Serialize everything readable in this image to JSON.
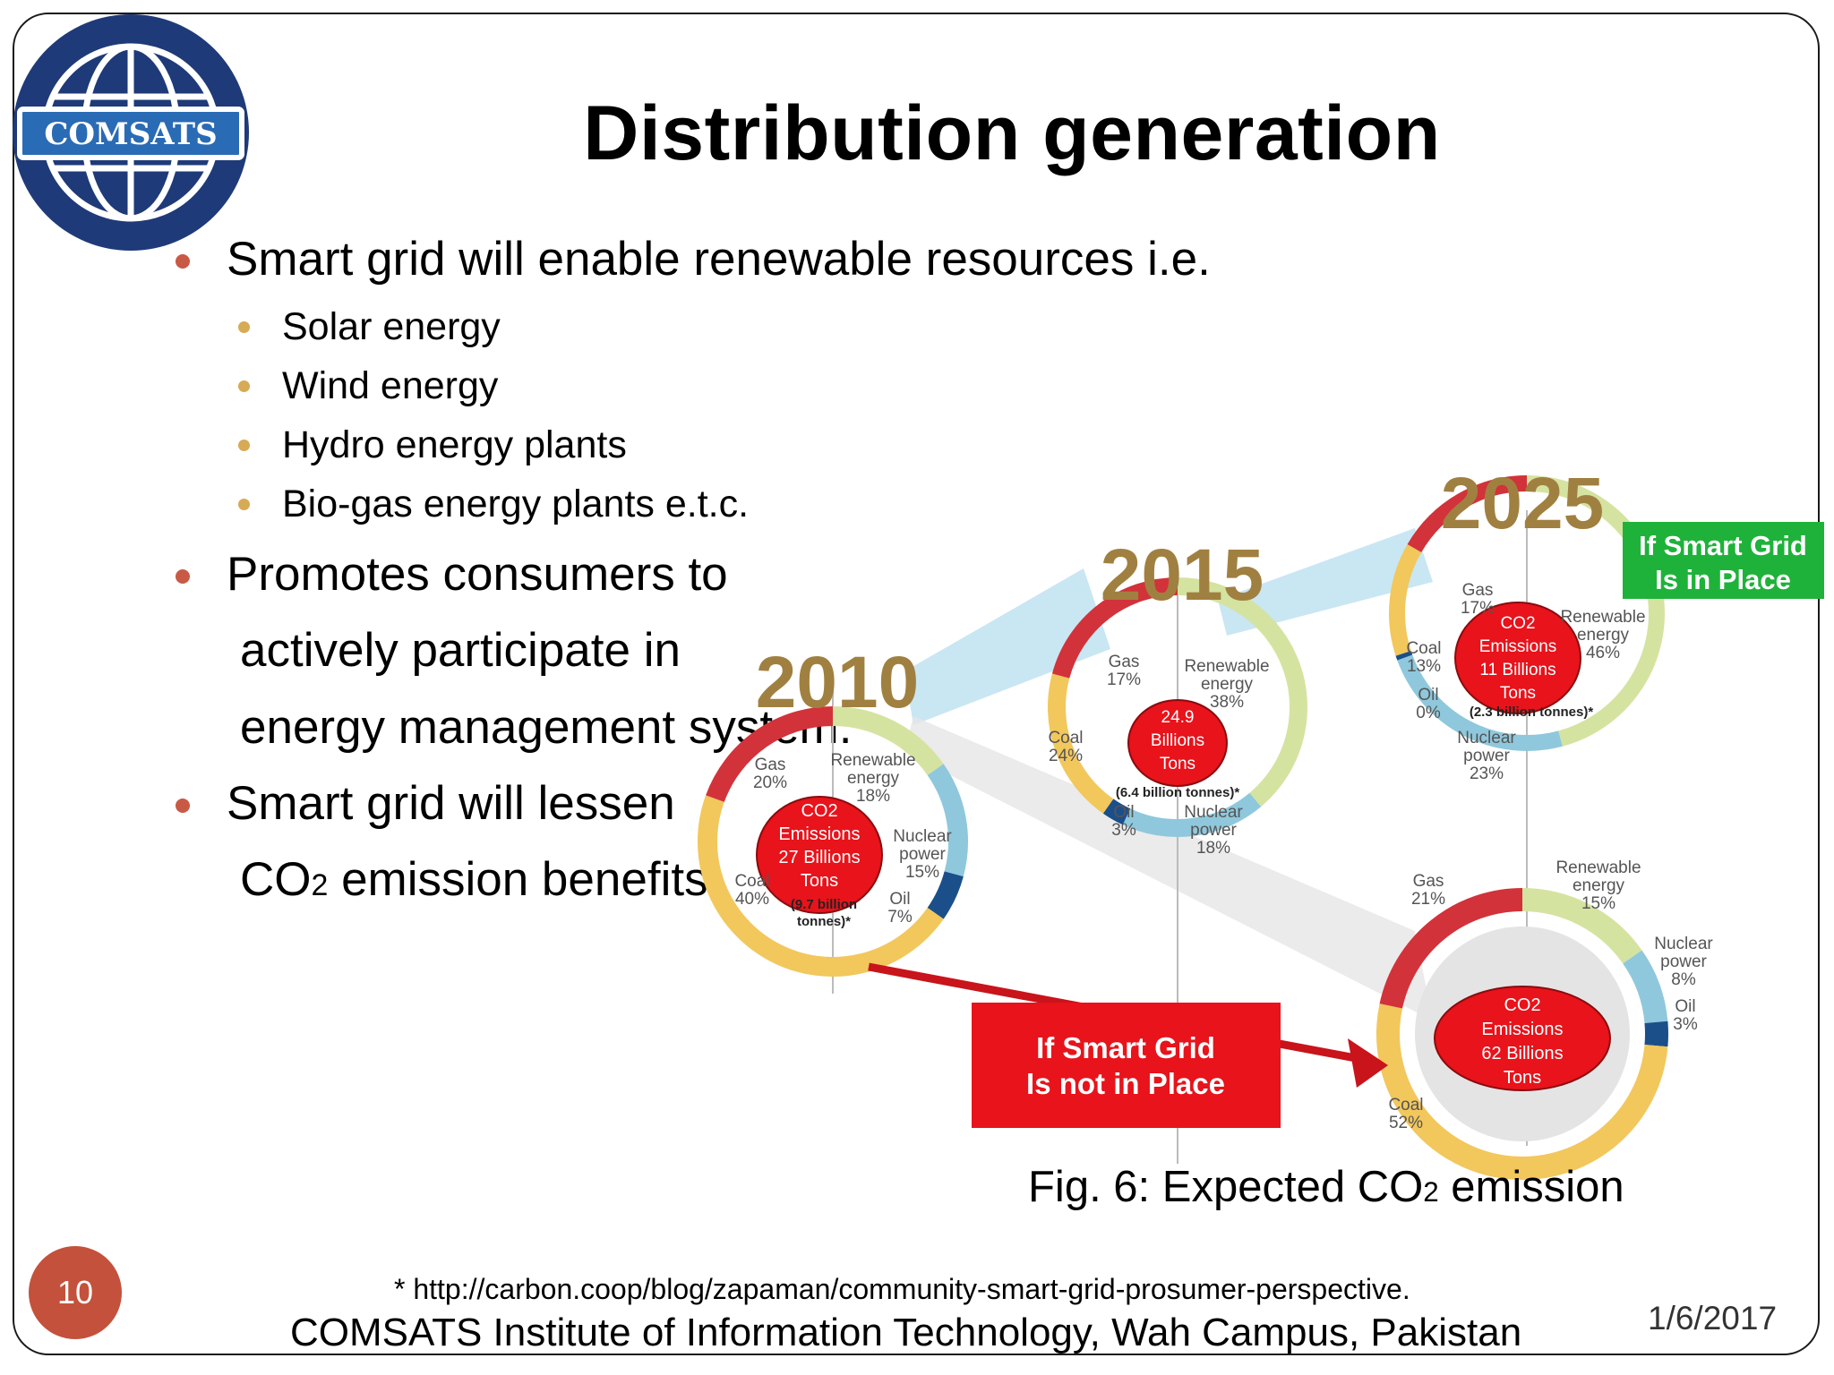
{
  "logo": {
    "text": "COMSATS",
    "colors": {
      "navy": "#1e3a78",
      "ring": "#ffffff",
      "banner": "#2a6bb5"
    }
  },
  "title": "Distribution generation",
  "bullets": [
    {
      "text": "Smart grid will enable renewable resources i.e.",
      "sub": [
        "Solar energy",
        "Wind energy",
        "Hydro energy plants",
        "Bio-gas energy plants e.t.c."
      ]
    },
    {
      "lines": [
        "Promotes consumers to",
        "actively participate in",
        "energy management system."
      ]
    },
    {
      "lines": [
        "Smart grid will lessen"
      ],
      "cont_pre": "CO",
      "cont_sub": "2",
      "cont_post": " emission benefits."
    }
  ],
  "figure": {
    "year_2010": "2010",
    "year_2015": "2015",
    "year_2025": "2025",
    "badge_with": "If Smart Grid\nIs in Place",
    "badge_without": "If Smart Grid\nIs not in Place",
    "colors": {
      "gas": "#d2323a",
      "coal": "#f2c75c",
      "renewable": "#d5e3a1",
      "nuclear": "#8fc8dc",
      "oil": "#1b4f8a",
      "center": "#e8131b",
      "year": "#a08040",
      "green": "#1fb23a",
      "arrow": "#c8141a"
    },
    "circles": {
      "c2010": {
        "center": [
          "CO2",
          "Emissions",
          "27 Billions",
          "Tons"
        ],
        "note": [
          "(9.7 billion",
          "tonnes)*"
        ],
        "labels": {
          "gas": [
            "Gas",
            "20%"
          ],
          "renewable": [
            "Renewable",
            "energy",
            "18%"
          ],
          "nuclear": [
            "Nuclear",
            "power",
            "15%"
          ],
          "oil": [
            "Oil",
            "7%"
          ],
          "coal": [
            "Coal",
            "40%"
          ]
        }
      },
      "c2015": {
        "center": [
          "24.9",
          "Billions",
          "Tons"
        ],
        "note": [
          "(6.4 billion tonnes)*"
        ],
        "labels": {
          "gas": [
            "Gas",
            "17%"
          ],
          "renewable": [
            "Renewable",
            "energy",
            "38%"
          ],
          "coal": [
            "Coal",
            "24%"
          ],
          "oil": [
            "Oil",
            "3%"
          ],
          "nuclear": [
            "Nuclear",
            "power",
            "18%"
          ]
        }
      },
      "c2025a": {
        "center": [
          "CO2",
          "Emissions",
          "11 Billions",
          "Tons"
        ],
        "note": [
          "(2.3 billion tonnes)*"
        ],
        "labels": {
          "gas": [
            "Gas",
            "17%"
          ],
          "renewable": [
            "Renewable",
            "energy",
            "46%"
          ],
          "coal": [
            "Coal",
            "13%"
          ],
          "oil": [
            "Oil",
            "0%"
          ],
          "nuclear": [
            "Nuclear",
            "power",
            "23%"
          ]
        }
      },
      "c2025b": {
        "center": [
          "CO2",
          "Emissions",
          "62 Billions",
          "Tons"
        ],
        "labels": {
          "gas": [
            "Gas",
            "21%"
          ],
          "renewable": [
            "Renewable",
            "energy",
            "15%"
          ],
          "nuclear": [
            "Nuclear",
            "power",
            "8%"
          ],
          "oil": [
            "Oil",
            "3%"
          ],
          "coal": [
            "Coal",
            "52%"
          ]
        }
      }
    }
  },
  "caption": {
    "pre": "Fig. 6: Expected CO",
    "sub": "2",
    "post": " emission"
  },
  "slide_number": "10",
  "source": "* http://carbon.coop/blog/zapaman/community-smart-grid-prosumer-perspective.",
  "footer": "COMSATS  Institute of Information Technology, Wah Campus, Pakistan",
  "date": "1/6/2017"
}
